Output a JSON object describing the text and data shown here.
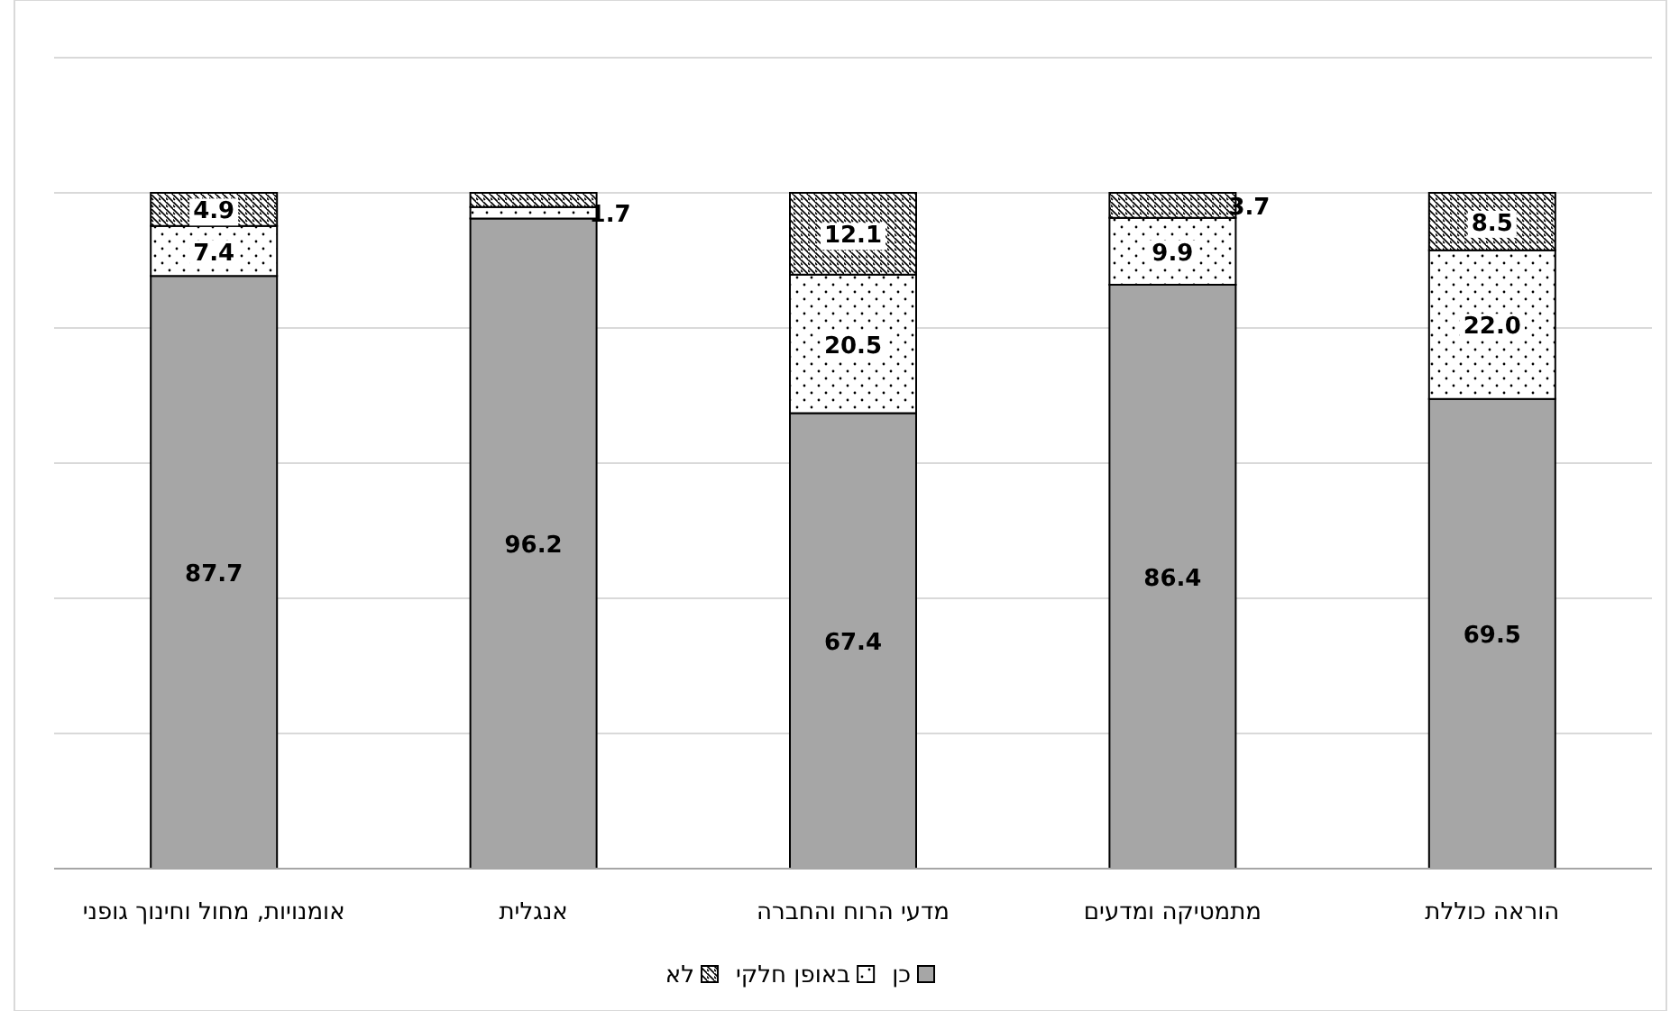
{
  "chart_data": {
    "type": "bar",
    "stacked": true,
    "categories": [
      "אומנויות, מחול וחינוך גופני",
      "אנגלית",
      "מדעי הרוח והחברה",
      "מתמטיקה ומדעים",
      "הוראה כוללת"
    ],
    "series": [
      {
        "name": "כן",
        "color": "#a6a6a6",
        "values": [
          87.7,
          96.2,
          67.4,
          86.4,
          69.5
        ],
        "value_labels": [
          "87.7",
          "96.2",
          "67.4",
          "86.4",
          "69.5"
        ]
      },
      {
        "name": "באופן חלקי",
        "color": "#ffffff",
        "values": [
          7.4,
          1.7,
          20.5,
          9.9,
          22.0
        ],
        "value_labels": [
          "7.4",
          "1.7",
          "20.5",
          "9.9",
          "22.0"
        ]
      },
      {
        "name": "לא",
        "color": "#ffffff",
        "values": [
          4.9,
          2.1,
          12.1,
          3.7,
          8.5
        ],
        "value_labels": [
          "4.9",
          null,
          "12.1",
          "3.7",
          "8.5"
        ]
      }
    ],
    "ylim": [
      0,
      120
    ],
    "yticks": [
      {
        "value": 0,
        "label": null
      },
      {
        "value": 20,
        "label": null
      },
      {
        "value": 40,
        "label": null
      },
      {
        "value": 60,
        "label": null
      },
      {
        "value": 80,
        "label": null
      },
      {
        "value": 100,
        "label": null
      },
      {
        "value": 120,
        "label": null
      }
    ],
    "tick_labels": "x",
    "grid": "y",
    "legend": "bottom"
  }
}
